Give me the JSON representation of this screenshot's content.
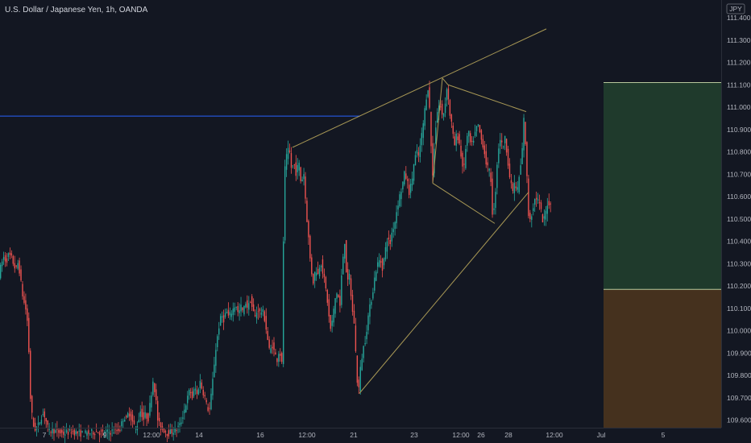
{
  "header": {
    "title": "U.S. Dollar / Japanese Yen, 1h, OANDA"
  },
  "currency_badge": "JPY",
  "colors": {
    "background": "#131722",
    "up": "#26a69a",
    "down": "#ef5350",
    "trendline": "#a89855",
    "hline": "#2962ff",
    "target_zone": "#1f3a2c",
    "stop_zone": "#45311e",
    "zone_border": "#b7c79c"
  },
  "chart_data": {
    "type": "candlestick",
    "title": "U.S. Dollar / Japanese Yen, 1h, OANDA",
    "ylim": [
      109.55,
      111.46
    ],
    "y_ticks": [
      "111.400",
      "111.300",
      "111.200",
      "111.100",
      "111.000",
      "110.900",
      "110.800",
      "110.700",
      "110.600",
      "110.500",
      "110.400",
      "110.300",
      "110.200",
      "110.100",
      "110.000",
      "109.900",
      "109.800",
      "109.700",
      "109.600"
    ],
    "x_ticks": [
      "7",
      "9",
      "12:00",
      "14",
      "16",
      "12:00",
      "21",
      "23",
      "12:00",
      "26",
      "28",
      "12:00",
      "Jul",
      "5"
    ],
    "price_path": [
      [
        0,
        110.25
      ],
      [
        3,
        110.3
      ],
      [
        6,
        110.33
      ],
      [
        9,
        110.31
      ],
      [
        12,
        110.34
      ],
      [
        15,
        110.33
      ],
      [
        18,
        110.3
      ],
      [
        21,
        110.27
      ],
      [
        24,
        110.31
      ],
      [
        27,
        110.22
      ],
      [
        30,
        110.14
      ],
      [
        33,
        110.1
      ],
      [
        36,
        110.02
      ],
      [
        39,
        109.7
      ],
      [
        42,
        109.58
      ],
      [
        45,
        109.56
      ],
      [
        48,
        109.57
      ],
      [
        51,
        109.6
      ],
      [
        54,
        109.63
      ],
      [
        57,
        109.62
      ],
      [
        60,
        109.57
      ],
      [
        63,
        109.55
      ],
      [
        66,
        109.56
      ],
      [
        70,
        109.55
      ],
      [
        80,
        109.54
      ],
      [
        90,
        109.55
      ],
      [
        100,
        109.54
      ],
      [
        110,
        109.54
      ],
      [
        120,
        109.55
      ],
      [
        130,
        109.54
      ],
      [
        140,
        109.55
      ],
      [
        150,
        109.56
      ],
      [
        155,
        109.62
      ],
      [
        158,
        109.6
      ],
      [
        161,
        109.64
      ],
      [
        164,
        109.61
      ],
      [
        167,
        109.58
      ],
      [
        170,
        109.56
      ],
      [
        173,
        109.6
      ],
      [
        176,
        109.65
      ],
      [
        179,
        109.6
      ],
      [
        182,
        109.63
      ],
      [
        185,
        109.6
      ],
      [
        188,
        109.69
      ],
      [
        191,
        109.78
      ],
      [
        194,
        109.72
      ],
      [
        197,
        109.6
      ],
      [
        200,
        109.57
      ],
      [
        210,
        109.54
      ],
      [
        220,
        109.56
      ],
      [
        225,
        109.58
      ],
      [
        228,
        109.62
      ],
      [
        231,
        109.66
      ],
      [
        234,
        109.7
      ],
      [
        237,
        109.74
      ],
      [
        240,
        109.7
      ],
      [
        243,
        109.75
      ],
      [
        246,
        109.71
      ],
      [
        249,
        109.78
      ],
      [
        252,
        109.74
      ],
      [
        255,
        109.71
      ],
      [
        258,
        109.66
      ],
      [
        261,
        109.64
      ],
      [
        264,
        109.73
      ],
      [
        267,
        109.85
      ],
      [
        270,
        109.95
      ],
      [
        273,
        110.02
      ],
      [
        276,
        110.07
      ],
      [
        279,
        110.05
      ],
      [
        282,
        110.09
      ],
      [
        285,
        110.06
      ],
      [
        288,
        110.08
      ],
      [
        291,
        110.1
      ],
      [
        294,
        110.12
      ],
      [
        297,
        110.07
      ],
      [
        300,
        110.11
      ],
      [
        303,
        110.08
      ],
      [
        306,
        110.13
      ],
      [
        309,
        110.1
      ],
      [
        312,
        110.14
      ],
      [
        315,
        110.09
      ],
      [
        318,
        110.06
      ],
      [
        321,
        110.1
      ],
      [
        324,
        110.08
      ],
      [
        327,
        110.09
      ],
      [
        330,
        110.05
      ],
      [
        333,
        109.97
      ],
      [
        336,
        109.9
      ],
      [
        339,
        109.94
      ],
      [
        342,
        109.9
      ],
      [
        345,
        109.87
      ],
      [
        348,
        109.92
      ],
      [
        351,
        109.85
      ],
      [
        354,
        110.7
      ],
      [
        357,
        110.78
      ],
      [
        360,
        110.82
      ],
      [
        363,
        110.72
      ],
      [
        366,
        110.75
      ],
      [
        369,
        110.7
      ],
      [
        372,
        110.76
      ],
      [
        375,
        110.65
      ],
      [
        378,
        110.72
      ],
      [
        381,
        110.55
      ],
      [
        384,
        110.42
      ],
      [
        387,
        110.28
      ],
      [
        390,
        110.22
      ],
      [
        393,
        110.28
      ],
      [
        396,
        110.25
      ],
      [
        399,
        110.32
      ],
      [
        402,
        110.26
      ],
      [
        405,
        110.2
      ],
      [
        408,
        110.12
      ],
      [
        411,
        110.0
      ],
      [
        414,
        110.05
      ],
      [
        417,
        110.14
      ],
      [
        420,
        110.18
      ],
      [
        423,
        110.1
      ],
      [
        426,
        110.3
      ],
      [
        429,
        110.4
      ],
      [
        432,
        110.2
      ],
      [
        435,
        110.25
      ],
      [
        438,
        110.1
      ],
      [
        441,
        110.03
      ],
      [
        444,
        109.8
      ],
      [
        446,
        109.72
      ],
      [
        449,
        109.85
      ],
      [
        452,
        109.92
      ],
      [
        455,
        109.97
      ],
      [
        458,
        110.06
      ],
      [
        461,
        110.12
      ],
      [
        464,
        110.18
      ],
      [
        467,
        110.26
      ],
      [
        470,
        110.3
      ],
      [
        473,
        110.32
      ],
      [
        476,
        110.28
      ],
      [
        479,
        110.35
      ],
      [
        482,
        110.42
      ],
      [
        485,
        110.38
      ],
      [
        488,
        110.45
      ],
      [
        491,
        110.48
      ],
      [
        494,
        110.55
      ],
      [
        497,
        110.6
      ],
      [
        500,
        110.64
      ],
      [
        503,
        110.7
      ],
      [
        506,
        110.68
      ],
      [
        509,
        110.62
      ],
      [
        512,
        110.66
      ],
      [
        515,
        110.75
      ],
      [
        518,
        110.8
      ],
      [
        521,
        110.78
      ],
      [
        524,
        110.86
      ],
      [
        527,
        110.94
      ],
      [
        530,
        111.04
      ],
      [
        533,
        111.1
      ],
      [
        536,
        110.85
      ],
      [
        538,
        110.68
      ],
      [
        541,
        110.88
      ],
      [
        544,
        110.98
      ],
      [
        547,
        111.02
      ],
      [
        550,
        110.96
      ],
      [
        553,
        110.99
      ],
      [
        556,
        111.1
      ],
      [
        559,
        110.98
      ],
      [
        562,
        110.92
      ],
      [
        565,
        110.82
      ],
      [
        568,
        110.88
      ],
      [
        571,
        110.85
      ],
      [
        574,
        110.76
      ],
      [
        577,
        110.72
      ],
      [
        580,
        110.86
      ],
      [
        583,
        110.88
      ],
      [
        586,
        110.82
      ],
      [
        589,
        110.86
      ],
      [
        592,
        110.9
      ],
      [
        595,
        110.92
      ],
      [
        598,
        110.86
      ],
      [
        601,
        110.83
      ],
      [
        604,
        110.76
      ],
      [
        607,
        110.72
      ],
      [
        610,
        110.7
      ],
      [
        613,
        110.48
      ],
      [
        616,
        110.62
      ],
      [
        619,
        110.8
      ],
      [
        622,
        110.86
      ],
      [
        625,
        110.82
      ],
      [
        628,
        110.86
      ],
      [
        631,
        110.78
      ],
      [
        634,
        110.68
      ],
      [
        637,
        110.62
      ],
      [
        640,
        110.66
      ],
      [
        643,
        110.62
      ],
      [
        646,
        110.7
      ],
      [
        649,
        110.78
      ],
      [
        651,
        110.96
      ],
      [
        653,
        110.86
      ],
      [
        655,
        110.7
      ],
      [
        657,
        110.52
      ],
      [
        660,
        110.5
      ],
      [
        663,
        110.56
      ],
      [
        666,
        110.6
      ],
      [
        669,
        110.58
      ],
      [
        672,
        110.55
      ],
      [
        675,
        110.48
      ],
      [
        678,
        110.52
      ],
      [
        681,
        110.58
      ],
      [
        684,
        110.56
      ]
    ],
    "annotations": {
      "hline": 110.96,
      "trendlines": [
        {
          "name": "rising-wedge-upper",
          "points": [
            [
              363,
              110.82
            ],
            [
              678,
              111.35
            ]
          ]
        },
        {
          "name": "rising-wedge-lower",
          "points": [
            [
              446,
              109.72
            ],
            [
              656,
              110.62
            ]
          ]
        },
        {
          "name": "triangle-left",
          "points": [
            [
              537,
              110.66
            ],
            [
              549,
              111.13
            ]
          ]
        },
        {
          "name": "triangle-bottom",
          "points": [
            [
              537,
              110.66
            ],
            [
              614,
              110.48
            ]
          ]
        },
        {
          "name": "triangle-top-left",
          "points": [
            [
              549,
              111.13
            ],
            [
              556,
              111.1
            ]
          ]
        },
        {
          "name": "triangle-top-right",
          "points": [
            [
              556,
              111.1
            ],
            [
              653,
              110.98
            ]
          ]
        }
      ],
      "target_zone": {
        "top": 111.11,
        "bottom": 110.185
      },
      "stop_zone": {
        "top": 110.185,
        "bottom": 109.55
      }
    }
  }
}
